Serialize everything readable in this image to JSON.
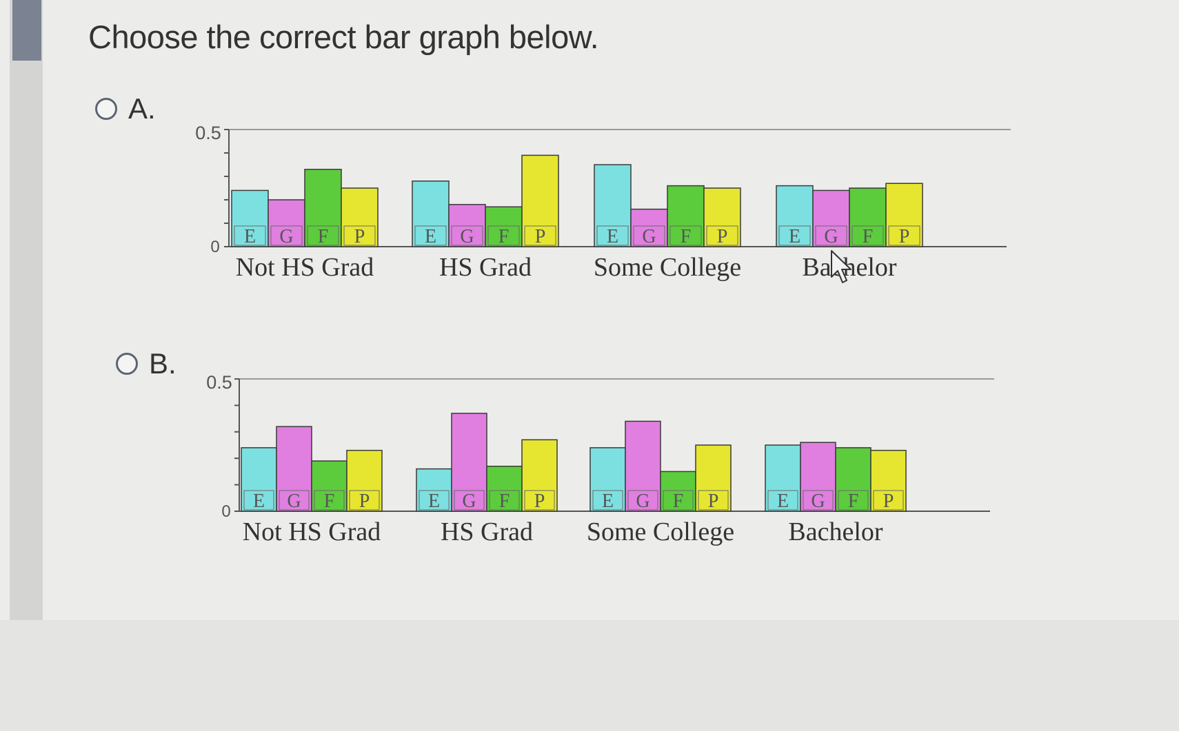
{
  "question": "Choose the correct bar graph below.",
  "options": [
    {
      "label": "A."
    },
    {
      "label": "B."
    }
  ],
  "colors": {
    "E": "#7de0e0",
    "G": "#e07fe0",
    "F": "#5ccc3c",
    "P": "#e6e630",
    "axis": "#555555",
    "topline": "#9a9a9a"
  },
  "chart_data": [
    {
      "type": "bar",
      "option": "A.",
      "categories": [
        "Not HS Grad",
        "HS Grad",
        "Some College",
        "Bachelor"
      ],
      "series": [
        {
          "name": "E",
          "values": [
            0.24,
            0.28,
            0.35,
            0.26
          ]
        },
        {
          "name": "G",
          "values": [
            0.2,
            0.18,
            0.16,
            0.24
          ]
        },
        {
          "name": "F",
          "values": [
            0.33,
            0.17,
            0.26,
            0.25
          ]
        },
        {
          "name": "P",
          "values": [
            0.25,
            0.39,
            0.25,
            0.27
          ]
        }
      ],
      "yticks": [
        "0",
        "0.5"
      ],
      "ylim": [
        0,
        0.5
      ],
      "grid": false
    },
    {
      "type": "bar",
      "option": "B.",
      "categories": [
        "Not HS Grad",
        "HS Grad",
        "Some College",
        "Bachelor"
      ],
      "series": [
        {
          "name": "E",
          "values": [
            0.24,
            0.16,
            0.24,
            0.25
          ]
        },
        {
          "name": "G",
          "values": [
            0.32,
            0.37,
            0.34,
            0.26
          ]
        },
        {
          "name": "F",
          "values": [
            0.19,
            0.17,
            0.15,
            0.24
          ]
        },
        {
          "name": "P",
          "values": [
            0.23,
            0.27,
            0.25,
            0.23
          ]
        }
      ],
      "yticks": [
        "0",
        "0.5"
      ],
      "ylim": [
        0,
        0.5
      ],
      "grid": false
    }
  ]
}
